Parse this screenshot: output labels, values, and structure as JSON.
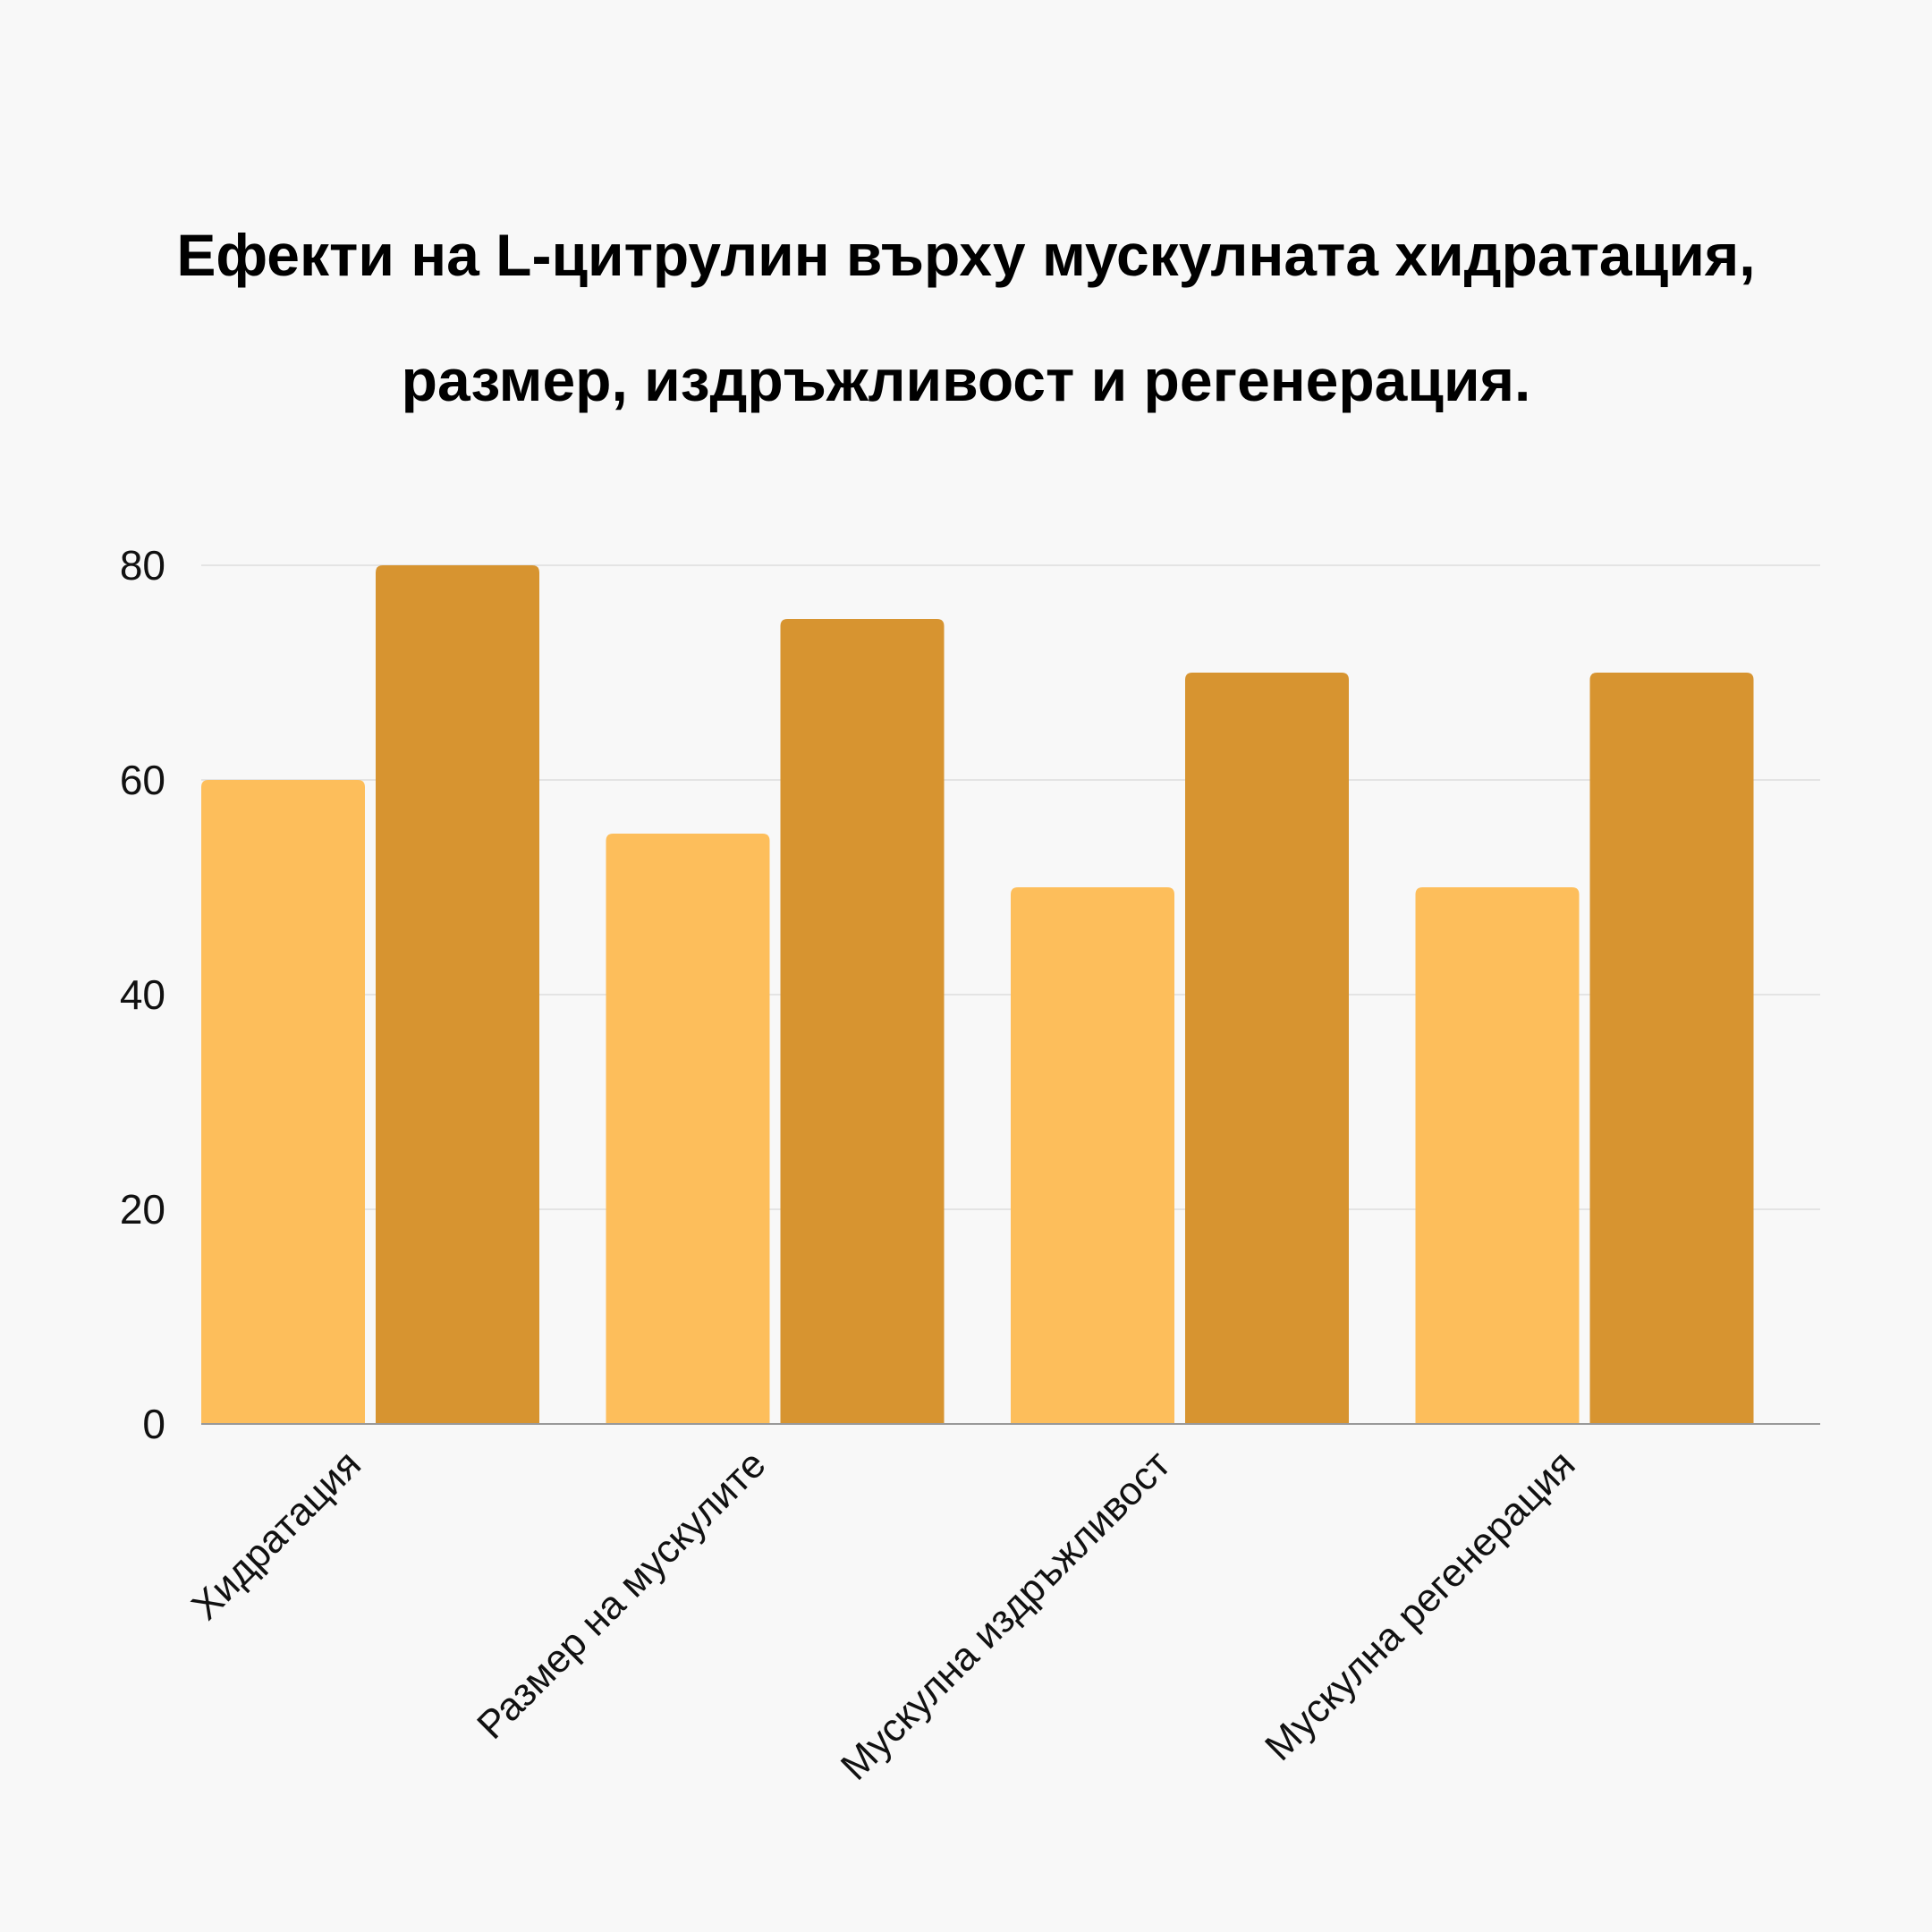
{
  "chart_data": {
    "type": "bar",
    "title_lines": [
      "Ефекти на L-цитрулин върху мускулната хидратация,",
      "размер, издръжливост и регенерация."
    ],
    "categories": [
      "Хидратация",
      "Размер на мускулите",
      "Мускулна издръжливост",
      "Мускулна регенерация"
    ],
    "series": [
      {
        "values": [
          60,
          55,
          50,
          50
        ],
        "color": "#FDBE5B"
      },
      {
        "values": [
          80,
          75,
          70,
          70
        ],
        "color": "#D79430"
      }
    ],
    "ylim": [
      0,
      80
    ],
    "yticks": [
      0,
      20,
      40,
      60,
      80
    ],
    "grid": true,
    "gridColor": "#DDDDDD",
    "axisColor": "#999999",
    "legend": "none"
  }
}
